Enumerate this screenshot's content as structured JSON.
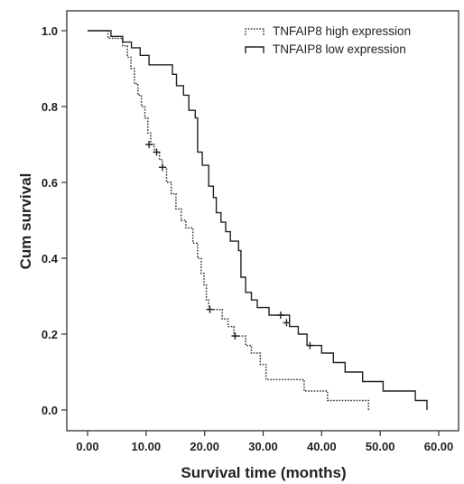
{
  "chart_data": {
    "type": "line",
    "subtype": "kaplan-meier step",
    "xlabel": "Survival time (months)",
    "ylabel": "Cum survival",
    "xlim": [
      0,
      60
    ],
    "ylim": [
      0,
      1.0
    ],
    "x_ticks": [
      "0.00",
      "10.00",
      "20.00",
      "30.00",
      "40.00",
      "50.00",
      "60.00"
    ],
    "y_ticks": [
      "0.0",
      "0.2",
      "0.4",
      "0.6",
      "0.8",
      "1.0"
    ],
    "grid": false,
    "legend_position": "top-right",
    "series": [
      {
        "name": "TNFAIP8 high expression",
        "line_style": "dotted",
        "color": "#333333",
        "points": [
          [
            0,
            1.0
          ],
          [
            3.5,
            1.0
          ],
          [
            3.5,
            0.98
          ],
          [
            6,
            0.98
          ],
          [
            6,
            0.96
          ],
          [
            6.8,
            0.96
          ],
          [
            6.8,
            0.93
          ],
          [
            7.4,
            0.93
          ],
          [
            7.4,
            0.9
          ],
          [
            8,
            0.9
          ],
          [
            8,
            0.86
          ],
          [
            8.6,
            0.86
          ],
          [
            8.6,
            0.83
          ],
          [
            9.2,
            0.83
          ],
          [
            9.2,
            0.8
          ],
          [
            9.8,
            0.8
          ],
          [
            9.8,
            0.77
          ],
          [
            10.3,
            0.77
          ],
          [
            10.3,
            0.73
          ],
          [
            10.8,
            0.73
          ],
          [
            10.8,
            0.7
          ],
          [
            11.4,
            0.7
          ],
          [
            11.4,
            0.68
          ],
          [
            12.3,
            0.68
          ],
          [
            12.3,
            0.66
          ],
          [
            12.8,
            0.66
          ],
          [
            12.8,
            0.64
          ],
          [
            13.5,
            0.64
          ],
          [
            13.5,
            0.6
          ],
          [
            14.3,
            0.6
          ],
          [
            14.3,
            0.57
          ],
          [
            15.1,
            0.57
          ],
          [
            15.1,
            0.53
          ],
          [
            16,
            0.53
          ],
          [
            16,
            0.5
          ],
          [
            16.8,
            0.5
          ],
          [
            16.8,
            0.48
          ],
          [
            18,
            0.48
          ],
          [
            18,
            0.44
          ],
          [
            18.8,
            0.44
          ],
          [
            18.8,
            0.4
          ],
          [
            19.4,
            0.4
          ],
          [
            19.4,
            0.36
          ],
          [
            19.9,
            0.36
          ],
          [
            19.9,
            0.33
          ],
          [
            20.3,
            0.33
          ],
          [
            20.3,
            0.29
          ],
          [
            20.7,
            0.29
          ],
          [
            20.7,
            0.265
          ],
          [
            23,
            0.265
          ],
          [
            23,
            0.24
          ],
          [
            24,
            0.24
          ],
          [
            24,
            0.22
          ],
          [
            25,
            0.22
          ],
          [
            25,
            0.195
          ],
          [
            27,
            0.195
          ],
          [
            27,
            0.17
          ],
          [
            28,
            0.17
          ],
          [
            28,
            0.15
          ],
          [
            29.5,
            0.15
          ],
          [
            29.5,
            0.12
          ],
          [
            30.5,
            0.12
          ],
          [
            30.5,
            0.08
          ],
          [
            37,
            0.08
          ],
          [
            37,
            0.05
          ],
          [
            41,
            0.05
          ],
          [
            41,
            0.025
          ],
          [
            48,
            0.025
          ],
          [
            48,
            0.0
          ]
        ],
        "censored": [
          [
            10.5,
            0.7
          ],
          [
            11.8,
            0.68
          ],
          [
            12.8,
            0.64
          ],
          [
            20.9,
            0.265
          ],
          [
            25.2,
            0.195
          ]
        ]
      },
      {
        "name": "TNFAIP8 low expression",
        "line_style": "solid",
        "color": "#222222",
        "points": [
          [
            0,
            1.0
          ],
          [
            4,
            1.0
          ],
          [
            4,
            0.985
          ],
          [
            6,
            0.985
          ],
          [
            6,
            0.97
          ],
          [
            7.5,
            0.97
          ],
          [
            7.5,
            0.955
          ],
          [
            9,
            0.955
          ],
          [
            9,
            0.935
          ],
          [
            10.5,
            0.935
          ],
          [
            10.5,
            0.91
          ],
          [
            14.5,
            0.91
          ],
          [
            14.5,
            0.885
          ],
          [
            15.2,
            0.885
          ],
          [
            15.2,
            0.855
          ],
          [
            16.4,
            0.855
          ],
          [
            16.4,
            0.83
          ],
          [
            17.3,
            0.83
          ],
          [
            17.3,
            0.79
          ],
          [
            18.4,
            0.79
          ],
          [
            18.4,
            0.77
          ],
          [
            18.8,
            0.77
          ],
          [
            18.8,
            0.68
          ],
          [
            19.6,
            0.68
          ],
          [
            19.6,
            0.645
          ],
          [
            20.7,
            0.645
          ],
          [
            20.7,
            0.59
          ],
          [
            21.5,
            0.59
          ],
          [
            21.5,
            0.56
          ],
          [
            22,
            0.56
          ],
          [
            22,
            0.52
          ],
          [
            22.8,
            0.52
          ],
          [
            22.8,
            0.495
          ],
          [
            23.6,
            0.495
          ],
          [
            23.6,
            0.47
          ],
          [
            24.4,
            0.47
          ],
          [
            24.4,
            0.445
          ],
          [
            25.8,
            0.445
          ],
          [
            25.8,
            0.42
          ],
          [
            26.2,
            0.42
          ],
          [
            26.2,
            0.35
          ],
          [
            27,
            0.35
          ],
          [
            27,
            0.31
          ],
          [
            28,
            0.31
          ],
          [
            28,
            0.29
          ],
          [
            29,
            0.29
          ],
          [
            29,
            0.27
          ],
          [
            31,
            0.27
          ],
          [
            31,
            0.25
          ],
          [
            34.5,
            0.25
          ],
          [
            34.5,
            0.22
          ],
          [
            36,
            0.22
          ],
          [
            36,
            0.2
          ],
          [
            37.5,
            0.2
          ],
          [
            37.5,
            0.17
          ],
          [
            40,
            0.17
          ],
          [
            40,
            0.15
          ],
          [
            42,
            0.15
          ],
          [
            42,
            0.125
          ],
          [
            44,
            0.125
          ],
          [
            44,
            0.1
          ],
          [
            47,
            0.1
          ],
          [
            47,
            0.075
          ],
          [
            50.5,
            0.075
          ],
          [
            50.5,
            0.05
          ],
          [
            56,
            0.05
          ],
          [
            56,
            0.025
          ],
          [
            58,
            0.025
          ],
          [
            58,
            0.0
          ]
        ],
        "censored": [
          [
            33,
            0.25
          ],
          [
            34,
            0.23
          ],
          [
            38,
            0.17
          ]
        ]
      }
    ]
  }
}
